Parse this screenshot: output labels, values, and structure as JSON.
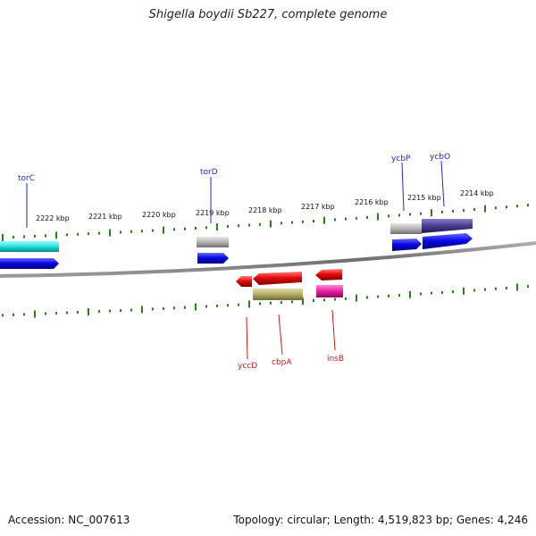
{
  "header": {
    "title": "Shigella boydii Sb227, complete genome"
  },
  "footer": {
    "accession": "Accession: NC_007613",
    "topology": "Topology: circular; Length: 4,519,823 bp; Genes: 4,246"
  },
  "ruler_labels": [
    "2222 kbp",
    "2221 kbp",
    "2220 kbp",
    "2219 kbp",
    "2218 kbp",
    "2217 kbp",
    "2216 kbp",
    "2215 kbp",
    "2214 kbp"
  ],
  "genes_top_strand": [
    "torC",
    "torD",
    "ycbP",
    "ycbO"
  ],
  "genes_bottom_strand": [
    "yccD",
    "cbpA",
    "insB"
  ],
  "colors": {
    "backbone": "#7a7a7a",
    "tick": "#2e7d1f",
    "top_label": "#1a2cc8",
    "bottom_label": "#cc1a1a",
    "cds_blue": "#0a0ae6",
    "cds_red": "#e60a0a",
    "cyan_feature": "#1ee0e0",
    "gray_feature": "#b4b4b4",
    "purple_feature": "#4a3c8c",
    "olive_feature": "#b4ac6a",
    "magenta_feature": "#e61ea0"
  }
}
